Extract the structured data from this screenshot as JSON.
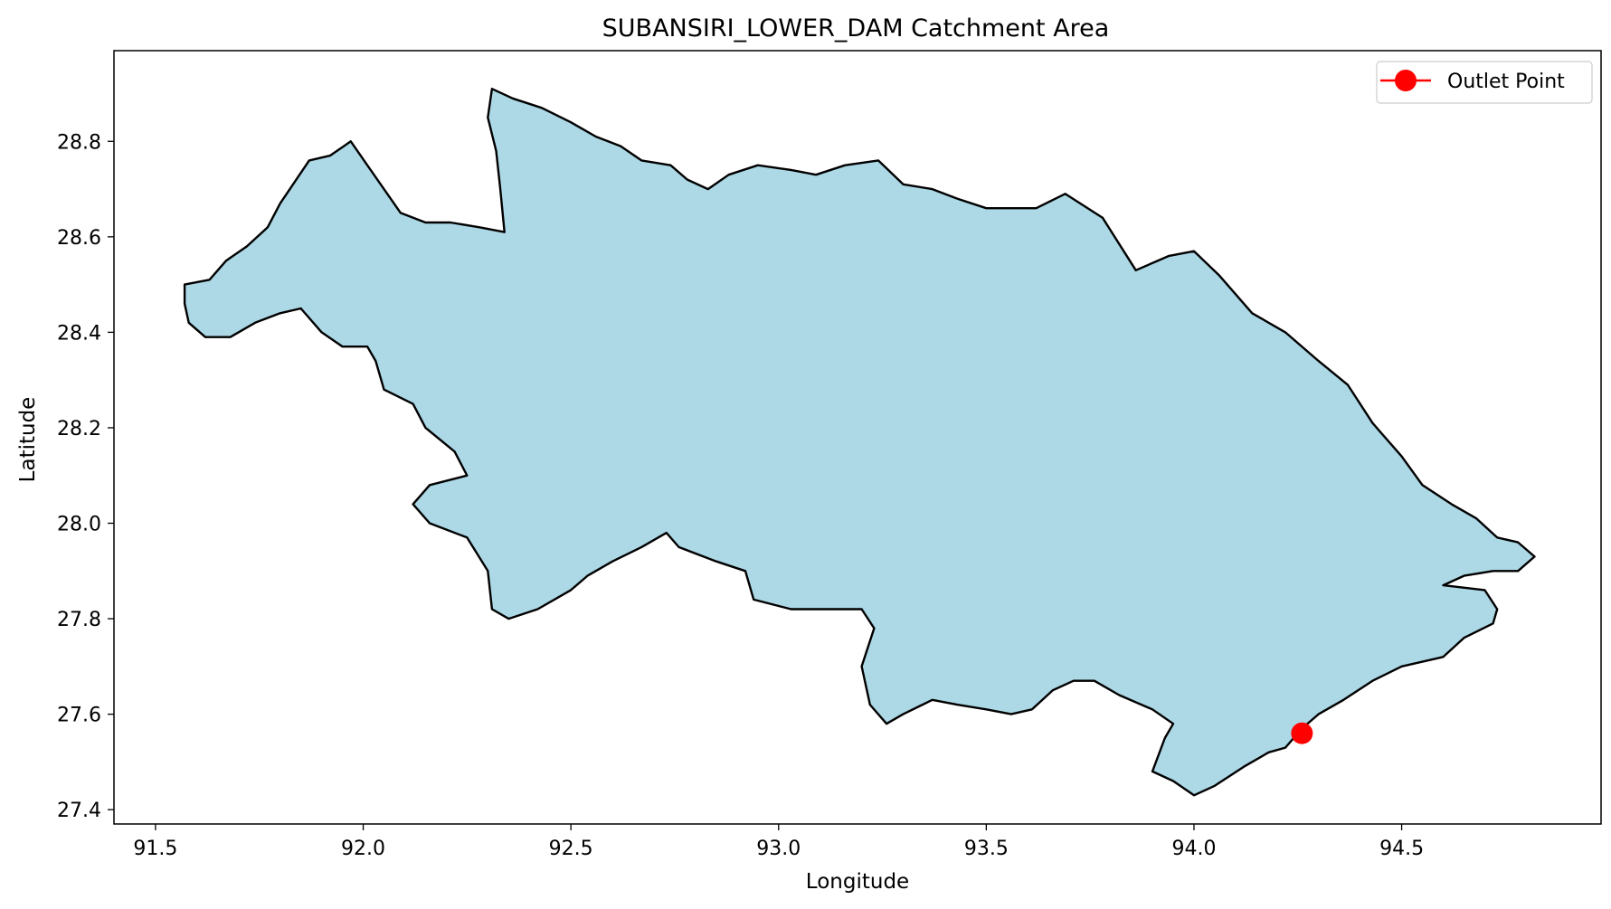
{
  "chart_data": {
    "type": "map",
    "title": "SUBANSIRI_LOWER_DAM Catchment Area",
    "xlabel": "Longitude",
    "ylabel": "Latitude",
    "xlim": [
      91.4,
      94.98
    ],
    "ylim": [
      27.37,
      28.99
    ],
    "xticks": [
      91.5,
      92.0,
      92.5,
      93.0,
      93.5,
      94.0,
      94.5
    ],
    "xtick_labels": [
      "91.5",
      "92.0",
      "92.5",
      "93.0",
      "93.5",
      "94.0",
      "94.5"
    ],
    "yticks": [
      27.4,
      27.6,
      27.8,
      28.0,
      28.2,
      28.4,
      28.6,
      28.8
    ],
    "ytick_labels": [
      "27.4",
      "27.6",
      "27.8",
      "28.0",
      "28.2",
      "28.4",
      "28.6",
      "28.8"
    ],
    "grid": false,
    "legend_position": "top-right",
    "catchment": {
      "fill_color": "#add8e6",
      "edge_color": "#000000",
      "boundary": [
        [
          91.57,
          28.5
        ],
        [
          91.63,
          28.51
        ],
        [
          91.67,
          28.55
        ],
        [
          91.72,
          28.58
        ],
        [
          91.77,
          28.62
        ],
        [
          91.8,
          28.67
        ],
        [
          91.87,
          28.76
        ],
        [
          91.92,
          28.77
        ],
        [
          91.97,
          28.8
        ],
        [
          92.01,
          28.75
        ],
        [
          92.05,
          28.7
        ],
        [
          92.09,
          28.65
        ],
        [
          92.15,
          28.63
        ],
        [
          92.21,
          28.63
        ],
        [
          92.28,
          28.62
        ],
        [
          92.34,
          28.61
        ],
        [
          92.33,
          28.7
        ],
        [
          92.32,
          28.78
        ],
        [
          92.3,
          28.85
        ],
        [
          92.31,
          28.91
        ],
        [
          92.36,
          28.89
        ],
        [
          92.43,
          28.87
        ],
        [
          92.5,
          28.84
        ],
        [
          92.56,
          28.81
        ],
        [
          92.62,
          28.79
        ],
        [
          92.67,
          28.76
        ],
        [
          92.74,
          28.75
        ],
        [
          92.78,
          28.72
        ],
        [
          92.83,
          28.7
        ],
        [
          92.88,
          28.73
        ],
        [
          92.95,
          28.75
        ],
        [
          93.03,
          28.74
        ],
        [
          93.09,
          28.73
        ],
        [
          93.16,
          28.75
        ],
        [
          93.24,
          28.76
        ],
        [
          93.3,
          28.71
        ],
        [
          93.37,
          28.7
        ],
        [
          93.43,
          28.68
        ],
        [
          93.5,
          28.66
        ],
        [
          93.56,
          28.66
        ],
        [
          93.62,
          28.66
        ],
        [
          93.69,
          28.69
        ],
        [
          93.78,
          28.64
        ],
        [
          93.86,
          28.53
        ],
        [
          93.94,
          28.56
        ],
        [
          94.0,
          28.57
        ],
        [
          94.06,
          28.52
        ],
        [
          94.14,
          28.44
        ],
        [
          94.22,
          28.4
        ],
        [
          94.3,
          28.34
        ],
        [
          94.37,
          28.29
        ],
        [
          94.43,
          28.21
        ],
        [
          94.5,
          28.14
        ],
        [
          94.55,
          28.08
        ],
        [
          94.62,
          28.04
        ],
        [
          94.68,
          28.01
        ],
        [
          94.73,
          27.97
        ],
        [
          94.78,
          27.96
        ],
        [
          94.82,
          27.93
        ],
        [
          94.78,
          27.9
        ],
        [
          94.72,
          27.9
        ],
        [
          94.65,
          27.89
        ],
        [
          94.6,
          27.87
        ],
        [
          94.7,
          27.86
        ],
        [
          94.73,
          27.82
        ],
        [
          94.72,
          27.79
        ],
        [
          94.65,
          27.76
        ],
        [
          94.6,
          27.72
        ],
        [
          94.5,
          27.7
        ],
        [
          94.43,
          27.67
        ],
        [
          94.36,
          27.63
        ],
        [
          94.3,
          27.6
        ],
        [
          94.26,
          27.57
        ],
        [
          94.22,
          27.53
        ],
        [
          94.18,
          27.52
        ],
        [
          94.12,
          27.49
        ],
        [
          94.05,
          27.45
        ],
        [
          94.0,
          27.43
        ],
        [
          93.95,
          27.46
        ],
        [
          93.9,
          27.48
        ],
        [
          93.93,
          27.55
        ],
        [
          93.95,
          27.58
        ],
        [
          93.9,
          27.61
        ],
        [
          93.82,
          27.64
        ],
        [
          93.76,
          27.67
        ],
        [
          93.71,
          27.67
        ],
        [
          93.66,
          27.65
        ],
        [
          93.61,
          27.61
        ],
        [
          93.56,
          27.6
        ],
        [
          93.5,
          27.61
        ],
        [
          93.43,
          27.62
        ],
        [
          93.37,
          27.63
        ],
        [
          93.3,
          27.6
        ],
        [
          93.26,
          27.58
        ],
        [
          93.22,
          27.62
        ],
        [
          93.2,
          27.7
        ],
        [
          93.23,
          27.78
        ],
        [
          93.2,
          27.82
        ],
        [
          93.12,
          27.82
        ],
        [
          93.03,
          27.82
        ],
        [
          92.94,
          27.84
        ],
        [
          92.92,
          27.9
        ],
        [
          92.85,
          27.92
        ],
        [
          92.76,
          27.95
        ],
        [
          92.73,
          27.98
        ],
        [
          92.67,
          27.95
        ],
        [
          92.6,
          27.92
        ],
        [
          92.54,
          27.89
        ],
        [
          92.5,
          27.86
        ],
        [
          92.42,
          27.82
        ],
        [
          92.35,
          27.8
        ],
        [
          92.31,
          27.82
        ],
        [
          92.3,
          27.9
        ],
        [
          92.25,
          27.97
        ],
        [
          92.16,
          28.0
        ],
        [
          92.12,
          28.04
        ],
        [
          92.16,
          28.08
        ],
        [
          92.25,
          28.1
        ],
        [
          92.22,
          28.15
        ],
        [
          92.15,
          28.2
        ],
        [
          92.12,
          28.25
        ],
        [
          92.05,
          28.28
        ],
        [
          92.03,
          28.34
        ],
        [
          92.01,
          28.37
        ],
        [
          91.95,
          28.37
        ],
        [
          91.9,
          28.4
        ],
        [
          91.85,
          28.45
        ],
        [
          91.8,
          28.44
        ],
        [
          91.74,
          28.42
        ],
        [
          91.68,
          28.39
        ],
        [
          91.62,
          28.39
        ],
        [
          91.58,
          28.42
        ],
        [
          91.57,
          28.46
        ]
      ]
    },
    "outlet": {
      "name": "Outlet Point",
      "lon": 94.26,
      "lat": 27.56,
      "color": "#ff0000"
    }
  }
}
